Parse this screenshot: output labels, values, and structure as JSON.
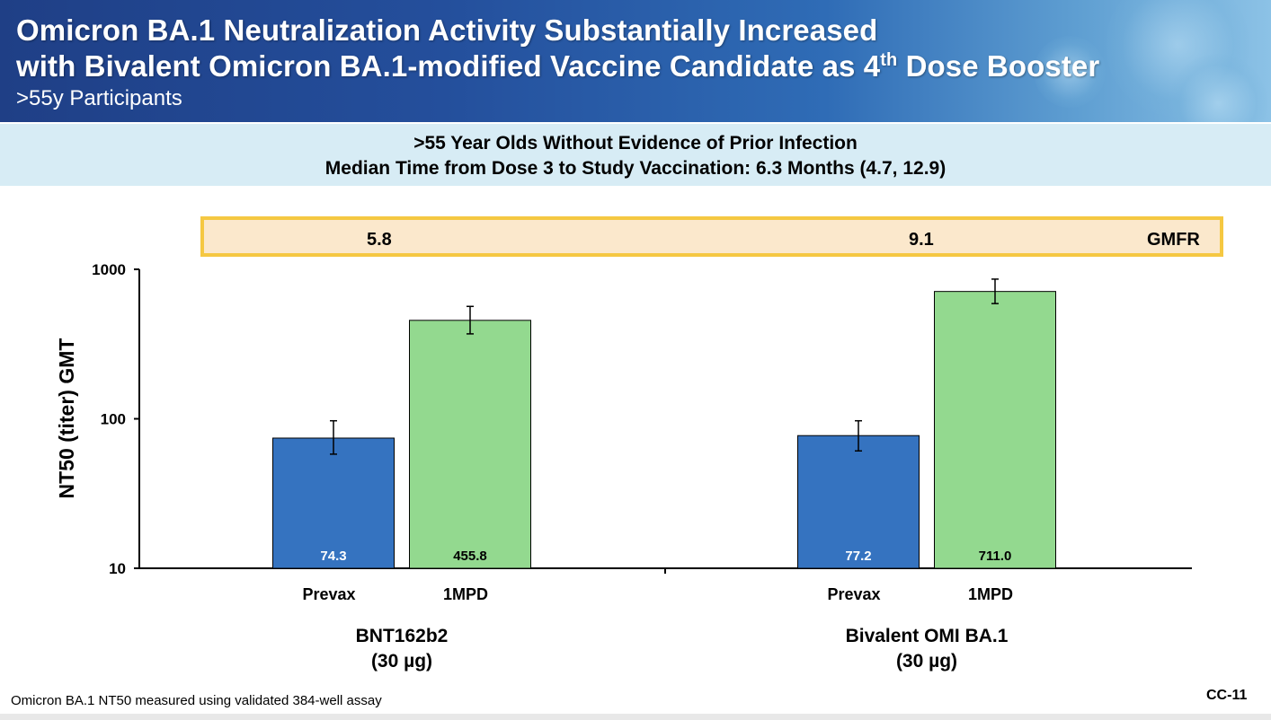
{
  "header": {
    "title_line1": "Omicron BA.1 Neutralization Activity Substantially Increased",
    "title_line2_pre": "with Bivalent Omicron BA.1-modified Vaccine Candidate as 4",
    "title_line2_sup": "th",
    "title_line2_post": " Dose Booster",
    "subtitle": ">55y Participants"
  },
  "subheader": {
    "line1": ">55 Year Olds Without Evidence of Prior Infection",
    "line2": "Median Time from Dose 3 to Study Vaccination: 6.3 Months (4.7, 12.9)"
  },
  "gmfr": {
    "label": "GMFR",
    "values": [
      "5.8",
      "9.1"
    ]
  },
  "chart_data": {
    "type": "bar",
    "scale": "log",
    "ylabel": "NT50 (titer) GMT",
    "ylim": [
      10,
      1000
    ],
    "yticks": [
      "10",
      "100",
      "1000"
    ],
    "groups": [
      {
        "label_line1": "BNT162b2",
        "label_line2": "(30 µg)",
        "bars": [
          {
            "category": "Prevax",
            "value": 74.3,
            "label": "74.3",
            "ci": [
              58,
              97
            ],
            "color": "#3573c0"
          },
          {
            "category": "1MPD",
            "value": 455.8,
            "label": "455.8",
            "ci": [
              370,
              565
            ],
            "color": "#93d98f"
          }
        ]
      },
      {
        "label_line1": "Bivalent OMI BA.1",
        "label_line2": "(30 µg)",
        "bars": [
          {
            "category": "Prevax",
            "value": 77.2,
            "label": "77.2",
            "ci": [
              61,
              97
            ],
            "color": "#3573c0"
          },
          {
            "category": "1MPD",
            "value": 711.0,
            "label": "711.0",
            "ci": [
              590,
              860
            ],
            "color": "#93d98f"
          }
        ]
      }
    ]
  },
  "footer": {
    "footnote": "Omicron BA.1 NT50 measured using validated 384-well assay",
    "slide_id": "CC-11"
  }
}
